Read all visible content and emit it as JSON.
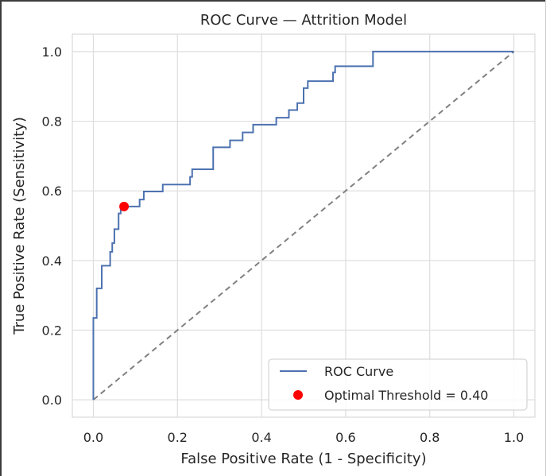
{
  "chart_data": {
    "type": "line",
    "title": "ROC Curve — Attrition Model",
    "xlabel": "False Positive Rate (1 - Specificity)",
    "ylabel": "True Positive Rate (Sensitivity)",
    "xlim": [
      -0.05,
      1.05
    ],
    "ylim": [
      -0.05,
      1.05
    ],
    "xticks": [
      0.0,
      0.2,
      0.4,
      0.6,
      0.8,
      1.0
    ],
    "yticks": [
      0.0,
      0.2,
      0.4,
      0.6,
      0.8,
      1.0
    ],
    "xtick_labels": [
      "0.0",
      "0.2",
      "0.4",
      "0.6",
      "0.8",
      "1.0"
    ],
    "ytick_labels": [
      "0.0",
      "0.2",
      "0.4",
      "0.6",
      "0.8",
      "1.0"
    ],
    "grid": true,
    "legend_position": "lower-right",
    "series": [
      {
        "name": "ROC Curve",
        "style": "step-line",
        "color": "#4c72b0",
        "x": [
          0.0,
          0.0,
          0.008,
          0.008,
          0.02,
          0.02,
          0.04,
          0.04,
          0.045,
          0.045,
          0.05,
          0.05,
          0.06,
          0.06,
          0.065,
          0.065,
          0.073,
          0.073,
          0.11,
          0.11,
          0.12,
          0.12,
          0.165,
          0.165,
          0.23,
          0.23,
          0.235,
          0.235,
          0.285,
          0.285,
          0.325,
          0.325,
          0.355,
          0.355,
          0.38,
          0.38,
          0.435,
          0.435,
          0.465,
          0.465,
          0.485,
          0.485,
          0.5,
          0.5,
          0.51,
          0.51,
          0.57,
          0.57,
          0.575,
          0.575,
          0.665,
          0.665,
          1.0
        ],
        "y": [
          0.0,
          0.235,
          0.235,
          0.32,
          0.32,
          0.385,
          0.385,
          0.425,
          0.425,
          0.45,
          0.45,
          0.49,
          0.49,
          0.535,
          0.535,
          0.555,
          0.555,
          0.555,
          0.555,
          0.575,
          0.575,
          0.598,
          0.598,
          0.618,
          0.618,
          0.64,
          0.64,
          0.662,
          0.662,
          0.725,
          0.725,
          0.745,
          0.745,
          0.768,
          0.768,
          0.79,
          0.79,
          0.81,
          0.81,
          0.832,
          0.832,
          0.852,
          0.852,
          0.895,
          0.895,
          0.915,
          0.915,
          0.94,
          0.94,
          0.958,
          0.958,
          1.0,
          1.0
        ]
      },
      {
        "name": "",
        "style": "dashed-line",
        "color": "#808080",
        "x": [
          0.0,
          1.0
        ],
        "y": [
          0.0,
          1.0
        ]
      }
    ],
    "points": [
      {
        "name": "Optimal Threshold = 0.40",
        "x": 0.073,
        "y": 0.555,
        "color": "#ff0000"
      }
    ]
  }
}
